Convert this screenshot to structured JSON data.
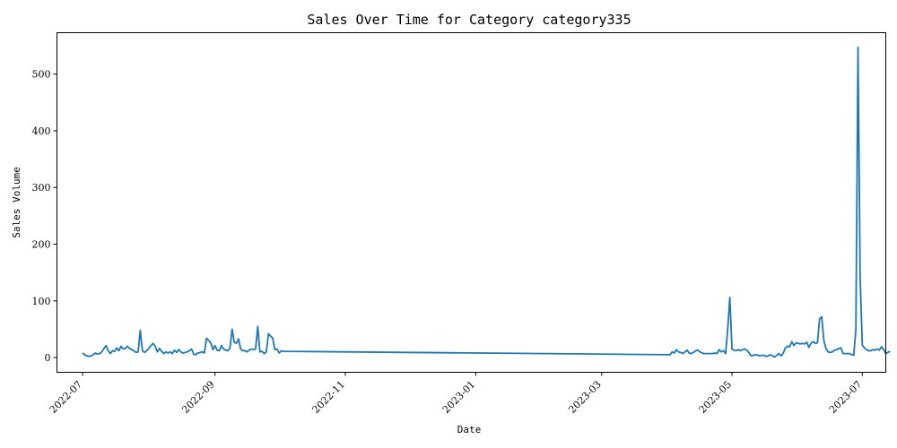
{
  "chart_data": {
    "type": "line",
    "title": "Sales Over Time for Category category335",
    "xlabel": "Date",
    "ylabel": "Sales Volume",
    "x_tick_labels": [
      "2022-07",
      "2022-09",
      "2022-11",
      "2023-01",
      "2023-03",
      "2023-05",
      "2023-07"
    ],
    "y_tick_labels": [
      "0",
      "100",
      "200",
      "300",
      "400",
      "500"
    ],
    "ylim": [
      -26,
      573
    ],
    "xlim": [
      "2022-06-19",
      "2023-07-12"
    ],
    "grid": false,
    "legend": "none",
    "color": "#1f77b4",
    "series": [
      {
        "points": [
          [
            "2022-07-01",
            8
          ],
          [
            "2022-07-02",
            5
          ],
          [
            "2022-07-03",
            3
          ],
          [
            "2022-07-04",
            2
          ],
          [
            "2022-07-05",
            3
          ],
          [
            "2022-07-06",
            5
          ],
          [
            "2022-07-07",
            8
          ],
          [
            "2022-07-08",
            6
          ],
          [
            "2022-07-09",
            7
          ],
          [
            "2022-07-10",
            10
          ],
          [
            "2022-07-11",
            16
          ],
          [
            "2022-07-12",
            21
          ],
          [
            "2022-07-13",
            12
          ],
          [
            "2022-07-14",
            7
          ],
          [
            "2022-07-15",
            12
          ],
          [
            "2022-07-16",
            11
          ],
          [
            "2022-07-17",
            17
          ],
          [
            "2022-07-18",
            12
          ],
          [
            "2022-07-19",
            20
          ],
          [
            "2022-07-20",
            15
          ],
          [
            "2022-07-21",
            16
          ],
          [
            "2022-07-22",
            20
          ],
          [
            "2022-07-23",
            16
          ],
          [
            "2022-07-24",
            14
          ],
          [
            "2022-07-25",
            12
          ],
          [
            "2022-07-26",
            9
          ],
          [
            "2022-07-27",
            10
          ],
          [
            "2022-07-28",
            48
          ],
          [
            "2022-07-29",
            12
          ],
          [
            "2022-07-30",
            9
          ],
          [
            "2022-07-31",
            12
          ],
          [
            "2022-08-01",
            16
          ],
          [
            "2022-08-02",
            21
          ],
          [
            "2022-08-03",
            25
          ],
          [
            "2022-08-04",
            20
          ],
          [
            "2022-08-05",
            10
          ],
          [
            "2022-08-06",
            16
          ],
          [
            "2022-08-07",
            11
          ],
          [
            "2022-08-08",
            7
          ],
          [
            "2022-08-09",
            10
          ],
          [
            "2022-08-10",
            8
          ],
          [
            "2022-08-11",
            10
          ],
          [
            "2022-08-12",
            7
          ],
          [
            "2022-08-13",
            13
          ],
          [
            "2022-08-14",
            9
          ],
          [
            "2022-08-15",
            14
          ],
          [
            "2022-08-16",
            10
          ],
          [
            "2022-08-17",
            8
          ],
          [
            "2022-08-18",
            9
          ],
          [
            "2022-08-19",
            10
          ],
          [
            "2022-08-20",
            12
          ],
          [
            "2022-08-21",
            15
          ],
          [
            "2022-08-22",
            6
          ],
          [
            "2022-08-23",
            5
          ],
          [
            "2022-08-24",
            8
          ],
          [
            "2022-08-25",
            9
          ],
          [
            "2022-08-26",
            10
          ],
          [
            "2022-08-27",
            8
          ],
          [
            "2022-08-28",
            34
          ],
          [
            "2022-08-29",
            30
          ],
          [
            "2022-08-30",
            26
          ],
          [
            "2022-08-31",
            14
          ],
          [
            "2022-09-01",
            21
          ],
          [
            "2022-09-02",
            13
          ],
          [
            "2022-09-03",
            12
          ],
          [
            "2022-09-04",
            21
          ],
          [
            "2022-09-05",
            15
          ],
          [
            "2022-09-06",
            13
          ],
          [
            "2022-09-07",
            12
          ],
          [
            "2022-09-08",
            17
          ],
          [
            "2022-09-09",
            50
          ],
          [
            "2022-09-10",
            27
          ],
          [
            "2022-09-11",
            25
          ],
          [
            "2022-09-12",
            33
          ],
          [
            "2022-09-13",
            15
          ],
          [
            "2022-09-14",
            12
          ],
          [
            "2022-09-15",
            12
          ],
          [
            "2022-09-16",
            10
          ],
          [
            "2022-09-17",
            13
          ],
          [
            "2022-09-18",
            15
          ],
          [
            "2022-09-19",
            14
          ],
          [
            "2022-09-20",
            15
          ],
          [
            "2022-09-21",
            55
          ],
          [
            "2022-09-22",
            10
          ],
          [
            "2022-09-23",
            11
          ],
          [
            "2022-09-24",
            7
          ],
          [
            "2022-09-25",
            10
          ],
          [
            "2022-09-26",
            42
          ],
          [
            "2022-09-27",
            38
          ],
          [
            "2022-09-28",
            34
          ],
          [
            "2022-09-29",
            14
          ],
          [
            "2022-09-30",
            15
          ],
          [
            "2022-10-01",
            8
          ],
          [
            "2022-10-02",
            12
          ],
          [
            "2022-10-03",
            11
          ],
          [
            "2023-04-02",
            5
          ],
          [
            "2023-04-03",
            10
          ],
          [
            "2023-04-04",
            8
          ],
          [
            "2023-04-05",
            14
          ],
          [
            "2023-04-06",
            10
          ],
          [
            "2023-04-07",
            9
          ],
          [
            "2023-04-08",
            7
          ],
          [
            "2023-04-09",
            10
          ],
          [
            "2023-04-10",
            13
          ],
          [
            "2023-04-11",
            8
          ],
          [
            "2023-04-12",
            7
          ],
          [
            "2023-04-13",
            9
          ],
          [
            "2023-04-14",
            12
          ],
          [
            "2023-04-15",
            13
          ],
          [
            "2023-04-16",
            10
          ],
          [
            "2023-04-17",
            8
          ],
          [
            "2023-04-18",
            7
          ],
          [
            "2023-04-19",
            7
          ],
          [
            "2023-04-20",
            7
          ],
          [
            "2023-04-21",
            7
          ],
          [
            "2023-04-22",
            7
          ],
          [
            "2023-04-23",
            8
          ],
          [
            "2023-04-24",
            7
          ],
          [
            "2023-04-25",
            14
          ],
          [
            "2023-04-26",
            10
          ],
          [
            "2023-04-27",
            12
          ],
          [
            "2023-04-28",
            7
          ],
          [
            "2023-04-29",
            50
          ],
          [
            "2023-04-30",
            106
          ],
          [
            "2023-05-01",
            15
          ],
          [
            "2023-05-02",
            13
          ],
          [
            "2023-05-03",
            12
          ],
          [
            "2023-05-04",
            14
          ],
          [
            "2023-05-05",
            12
          ],
          [
            "2023-05-06",
            14
          ],
          [
            "2023-05-07",
            15
          ],
          [
            "2023-05-08",
            13
          ],
          [
            "2023-05-09",
            8
          ],
          [
            "2023-05-10",
            3
          ],
          [
            "2023-05-11",
            4
          ],
          [
            "2023-05-12",
            5
          ],
          [
            "2023-05-13",
            4
          ],
          [
            "2023-05-14",
            3
          ],
          [
            "2023-05-15",
            4
          ],
          [
            "2023-05-16",
            4
          ],
          [
            "2023-05-17",
            2
          ],
          [
            "2023-05-18",
            3
          ],
          [
            "2023-05-19",
            5
          ],
          [
            "2023-05-20",
            3
          ],
          [
            "2023-05-21",
            1
          ],
          [
            "2023-05-22",
            4
          ],
          [
            "2023-05-23",
            7
          ],
          [
            "2023-05-24",
            3
          ],
          [
            "2023-05-25",
            8
          ],
          [
            "2023-05-26",
            17
          ],
          [
            "2023-05-27",
            20
          ],
          [
            "2023-05-28",
            19
          ],
          [
            "2023-05-29",
            28
          ],
          [
            "2023-05-30",
            21
          ],
          [
            "2023-05-31",
            26
          ],
          [
            "2023-06-01",
            25
          ],
          [
            "2023-06-02",
            24
          ],
          [
            "2023-06-03",
            25
          ],
          [
            "2023-06-04",
            24
          ],
          [
            "2023-06-05",
            27
          ],
          [
            "2023-06-06",
            18
          ],
          [
            "2023-06-07",
            25
          ],
          [
            "2023-06-08",
            28
          ],
          [
            "2023-06-09",
            25
          ],
          [
            "2023-06-10",
            26
          ],
          [
            "2023-06-11",
            68
          ],
          [
            "2023-06-12",
            72
          ],
          [
            "2023-06-13",
            30
          ],
          [
            "2023-06-14",
            16
          ],
          [
            "2023-06-15",
            10
          ],
          [
            "2023-06-16",
            9
          ],
          [
            "2023-06-17",
            10
          ],
          [
            "2023-06-18",
            13
          ],
          [
            "2023-06-19",
            14
          ],
          [
            "2023-06-20",
            16
          ],
          [
            "2023-06-21",
            17
          ],
          [
            "2023-06-22",
            7
          ],
          [
            "2023-06-23",
            7
          ],
          [
            "2023-06-24",
            7
          ],
          [
            "2023-06-25",
            7
          ],
          [
            "2023-06-26",
            5
          ],
          [
            "2023-06-27",
            4
          ],
          [
            "2023-06-28",
            50
          ],
          [
            "2023-06-29",
            547
          ],
          [
            "2023-06-30",
            140
          ],
          [
            "2023-07-01",
            22
          ],
          [
            "2023-07-02",
            17
          ],
          [
            "2023-07-03",
            14
          ],
          [
            "2023-07-04",
            12
          ],
          [
            "2023-07-05",
            12
          ],
          [
            "2023-07-06",
            14
          ],
          [
            "2023-07-07",
            13
          ],
          [
            "2023-07-08",
            15
          ],
          [
            "2023-07-09",
            13
          ],
          [
            "2023-07-10",
            19
          ],
          [
            "2023-07-11",
            14
          ],
          [
            "2023-07-12",
            7
          ],
          [
            "2023-07-13",
            9
          ],
          [
            "2023-07-14",
            11
          ]
        ]
      }
    ]
  }
}
